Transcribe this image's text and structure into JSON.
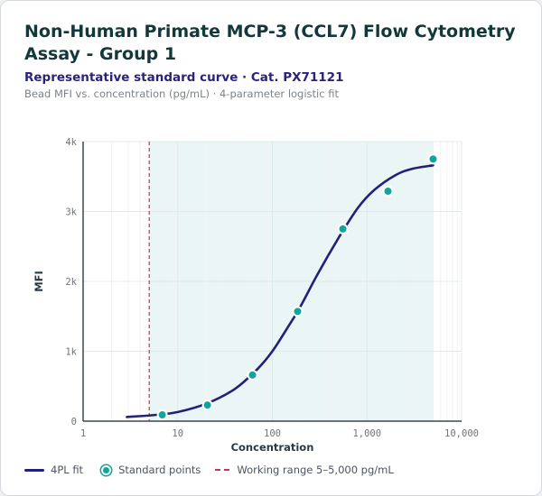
{
  "header": {
    "title": "Non-Human Primate MCP-3 (CCL7) Flow Cytometry Assay - Group 1",
    "subtitle": "Representative standard curve · Cat. PX71121",
    "caption": "Bead MFI vs. concentration (pg/mL) · 4-parameter logistic fit"
  },
  "colors": {
    "curve": "#23207a",
    "points": "#13a39b",
    "range_line": "#d3324a",
    "range_fill": "#e9f6f5"
  },
  "chart_data": {
    "type": "scatter",
    "xlabel": "Concentration",
    "ylabel": "MFI",
    "x_scale": "log",
    "xlim": [
      1,
      10000
    ],
    "ylim": [
      0,
      4000
    ],
    "x_ticks": [
      "1",
      "10",
      "100",
      "1,000",
      "10,000"
    ],
    "y_ticks": [
      "0",
      "1k",
      "2k",
      "3k",
      "4k"
    ],
    "grid": true,
    "legend_position": "bottom",
    "series": [
      {
        "name": "Standard points",
        "kind": "scatter",
        "x": [
          6.86,
          20.6,
          61.7,
          185,
          556,
          1667,
          5000
        ],
        "y": [
          90,
          230,
          660,
          1570,
          2750,
          3290,
          3750
        ]
      },
      {
        "name": "4PL fit",
        "kind": "line",
        "x": [
          2.9,
          6,
          10,
          20,
          40,
          70,
          100,
          150,
          200,
          300,
          500,
          800,
          1200,
          2000,
          3000,
          5000
        ],
        "y": [
          60,
          90,
          130,
          250,
          460,
          750,
          1000,
          1370,
          1650,
          2100,
          2620,
          3050,
          3310,
          3520,
          3610,
          3660
        ]
      }
    ],
    "working_range": {
      "label": "Working range 5–5,000 pg/mL",
      "min": 5,
      "max": 5000
    }
  }
}
